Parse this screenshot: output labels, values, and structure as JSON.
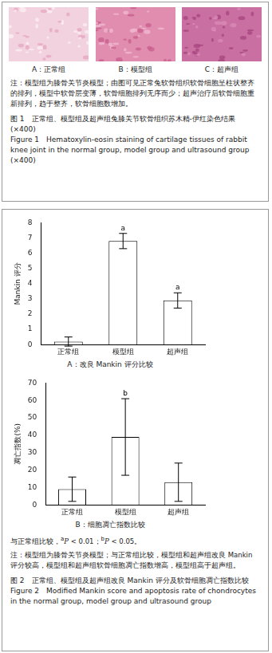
{
  "figure1": {
    "panels": [
      "A：正常组",
      "B：模型组",
      "C：超声组"
    ],
    "note": "注：模型组为膝骨关节炎模型；由图可见正常兔软骨组织软骨细胞呈柱状整齐的排列，模型中软骨层变薄，软骨细胞排列无序而少；超声治疗后软骨细胞重新排列，趋于整齐，软骨细胞数增加。",
    "caption_cn": "图 1　正常组、模型组及超声组兔膝关节软骨组织苏木精-伊红染色结果(×400)",
    "caption_en": "Figure 1　Hematoxylin-eosin staining of cartilage tissues of rabbit knee joint in the normal group, model group and ultrasound group (×400)"
  },
  "chart_data": [
    {
      "type": "bar",
      "subtitle": "A：改良 Mankin 评分比较",
      "y_label": "Mankin 评分",
      "categories": [
        "正常组",
        "模型组",
        "超声组"
      ],
      "values": [
        0.2,
        6.8,
        2.9
      ],
      "errors": [
        0.3,
        0.5,
        0.5
      ],
      "significance": [
        null,
        "a",
        "a"
      ],
      "color": "#ffffff",
      "ylim": [
        0,
        8
      ],
      "yticks": [
        0,
        1,
        2,
        3,
        4,
        5,
        6,
        7,
        8
      ],
      "grid": false
    },
    {
      "type": "bar",
      "subtitle": "B：细胞凋亡指数比较",
      "y_label": "凋亡指数(%)",
      "categories": [
        "正常组",
        "模型组",
        "超声组"
      ],
      "values": [
        9,
        39,
        13
      ],
      "errors": [
        7,
        22,
        11
      ],
      "significance": [
        null,
        "b",
        null
      ],
      "color": "#ffffff",
      "ylim": [
        0,
        70
      ],
      "yticks": [
        0,
        10,
        20,
        30,
        40,
        50,
        60,
        70
      ],
      "grid": false
    }
  ],
  "figure2": {
    "significance_prefix": "与正常组比较，",
    "significance_items": [
      {
        "mark": "a",
        "text": "P < 0.01；"
      },
      {
        "mark": "b",
        "text": "P < 0.05。"
      }
    ],
    "note": "注：模型组为膝骨关节炎模型；与正常组比较，模型组和超声组改良 Mankin 评分较高，模型组和超声组软骨细胞凋亡指数增高，模型组高于超声组。",
    "caption_cn": "图 2　正常组、模型组及超声组改良 Mankin 评分及软骨细胞凋亡指数比较",
    "caption_en": "Figure 2　Modified Mankin score and apoptosis rate of chondrocytes in the normal group, model group and ultrasound group"
  }
}
